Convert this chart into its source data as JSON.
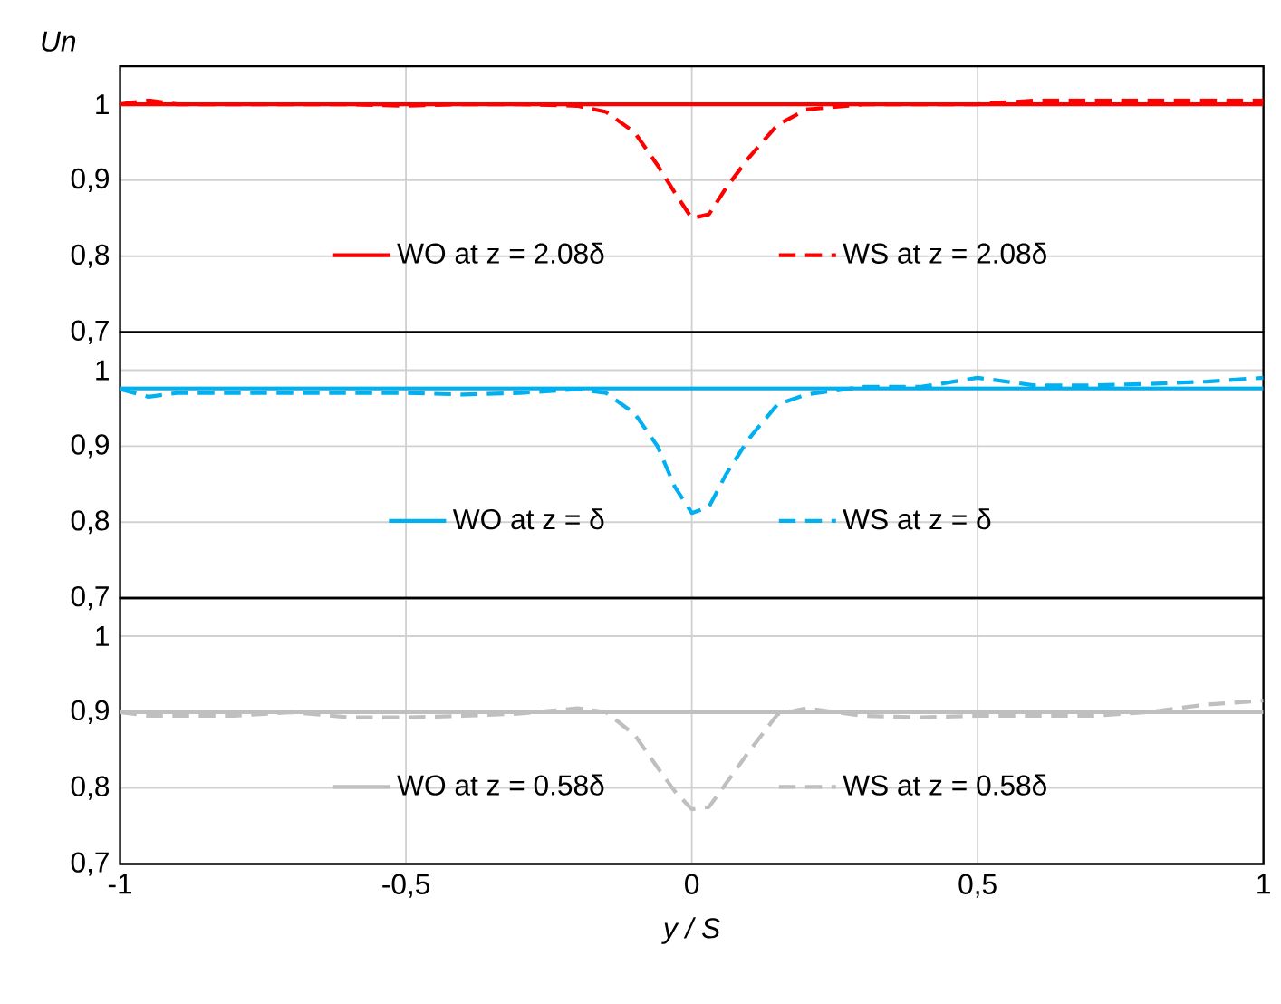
{
  "chart_data": [
    {
      "type": "line",
      "ylabel": "Un",
      "xlim": [
        -1,
        1
      ],
      "xticks": [
        {
          "value": -1,
          "label": null
        },
        {
          "value": -0.5,
          "label": null
        },
        {
          "value": 0,
          "label": null
        },
        {
          "value": 0.5,
          "label": null
        },
        {
          "value": 1,
          "label": null
        }
      ],
      "ylim": [
        0.7,
        1.05
      ],
      "yticks": [
        {
          "value": 0.7,
          "label": "0,7"
        },
        {
          "value": 0.8,
          "label": "0,8"
        },
        {
          "value": 0.9,
          "label": "0,9"
        },
        1
      ],
      "tick_labels": "y",
      "grid": true,
      "legend": "bottom",
      "series": [
        {
          "name": "WO at z = 2.08δ",
          "color": "#ff0000",
          "line_style": "solid",
          "x": [
            -1,
            1
          ],
          "values": [
            1.0,
            1.0
          ]
        },
        {
          "name": "WS at z = 2.08δ",
          "color": "#ff0000",
          "line_style": "dashed",
          "x": [
            -1,
            -0.95,
            -0.9,
            -0.8,
            -0.7,
            -0.6,
            -0.5,
            -0.4,
            -0.3,
            -0.2,
            -0.15,
            -0.1,
            -0.06,
            -0.03,
            0,
            0.03,
            0.06,
            0.1,
            0.15,
            0.2,
            0.3,
            0.4,
            0.5,
            0.6,
            0.7,
            0.8,
            0.9,
            1
          ],
          "values": [
            1.0,
            1.005,
            1.0,
            1.0,
            1.0,
            1.0,
            0.998,
            1.0,
            1.0,
            0.998,
            0.99,
            0.963,
            0.92,
            0.884,
            0.85,
            0.855,
            0.89,
            0.93,
            0.973,
            0.993,
            1.0,
            1.0,
            1.0,
            1.005,
            1.005,
            1.005,
            1.005,
            1.005
          ]
        }
      ]
    },
    {
      "type": "line",
      "xlim": [
        -1,
        1
      ],
      "xticks": [
        {
          "value": -1,
          "label": null
        },
        {
          "value": -0.5,
          "label": null
        },
        {
          "value": 0,
          "label": null
        },
        {
          "value": 0.5,
          "label": null
        },
        {
          "value": 1,
          "label": null
        }
      ],
      "ylim": [
        0.7,
        1.05
      ],
      "yticks": [
        {
          "value": 0.7,
          "label": "0,7"
        },
        {
          "value": 0.8,
          "label": "0,8"
        },
        {
          "value": 0.9,
          "label": "0,9"
        },
        1
      ],
      "tick_labels": "y",
      "grid": true,
      "legend": "bottom",
      "series": [
        {
          "name": "WO at z = δ",
          "color": "#00b0f0",
          "line_style": "solid",
          "x": [
            -1,
            1
          ],
          "values": [
            0.976,
            0.976
          ]
        },
        {
          "name": "WS at z = δ",
          "color": "#00b0f0",
          "line_style": "dashed",
          "x": [
            -1,
            -0.95,
            -0.9,
            -0.8,
            -0.7,
            -0.6,
            -0.5,
            -0.4,
            -0.3,
            -0.2,
            -0.15,
            -0.1,
            -0.06,
            -0.03,
            0,
            0.03,
            0.06,
            0.1,
            0.15,
            0.2,
            0.3,
            0.4,
            0.5,
            0.6,
            0.7,
            0.8,
            0.9,
            1
          ],
          "values": [
            0.975,
            0.965,
            0.97,
            0.97,
            0.97,
            0.97,
            0.97,
            0.968,
            0.97,
            0.975,
            0.97,
            0.943,
            0.9,
            0.847,
            0.812,
            0.82,
            0.863,
            0.91,
            0.955,
            0.968,
            0.978,
            0.978,
            0.99,
            0.98,
            0.98,
            0.982,
            0.985,
            0.99
          ]
        }
      ]
    },
    {
      "type": "line",
      "xlabel": "y / S",
      "xlim": [
        -1,
        1
      ],
      "xticks": [
        -1,
        {
          "value": -0.5,
          "label": "-0,5"
        },
        0,
        {
          "value": 0.5,
          "label": "0,5"
        },
        1
      ],
      "ylim": [
        0.7,
        1.05
      ],
      "yticks": [
        {
          "value": 0.7,
          "label": "0,7"
        },
        {
          "value": 0.8,
          "label": "0,8"
        },
        {
          "value": 0.9,
          "label": "0,9"
        },
        1
      ],
      "grid": true,
      "legend": "bottom",
      "series": [
        {
          "name": "WO at z = 0.58δ",
          "color": "#bfbfbf",
          "line_style": "solid",
          "x": [
            -1,
            1
          ],
          "values": [
            0.9,
            0.9
          ]
        },
        {
          "name": "WS at z = 0.58δ",
          "color": "#bfbfbf",
          "line_style": "dashed",
          "x": [
            -1,
            -0.95,
            -0.9,
            -0.8,
            -0.7,
            -0.6,
            -0.5,
            -0.4,
            -0.3,
            -0.2,
            -0.15,
            -0.1,
            -0.06,
            -0.03,
            0,
            0.03,
            0.06,
            0.1,
            0.15,
            0.2,
            0.3,
            0.4,
            0.5,
            0.6,
            0.7,
            0.8,
            0.9,
            1
          ],
          "values": [
            0.9,
            0.895,
            0.895,
            0.895,
            0.9,
            0.893,
            0.893,
            0.895,
            0.898,
            0.905,
            0.9,
            0.87,
            0.827,
            0.796,
            0.772,
            0.775,
            0.806,
            0.848,
            0.897,
            0.905,
            0.895,
            0.893,
            0.895,
            0.895,
            0.895,
            0.9,
            0.91,
            0.915
          ]
        }
      ]
    }
  ]
}
